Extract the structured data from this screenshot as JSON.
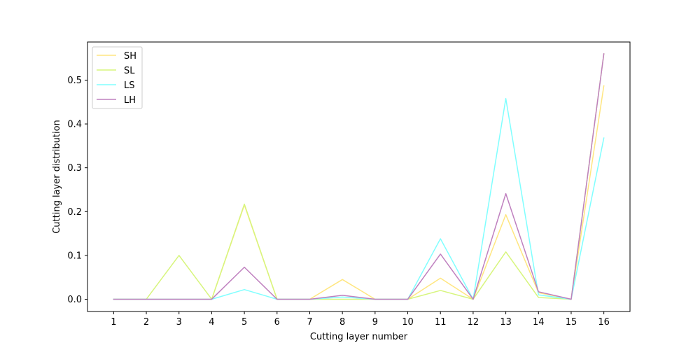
{
  "chart_data": {
    "type": "line",
    "title": "",
    "xlabel": "Cutting layer number",
    "ylabel": "Cutting layer distribution",
    "x": [
      1,
      2,
      3,
      4,
      5,
      6,
      7,
      8,
      9,
      10,
      11,
      12,
      13,
      14,
      15,
      16
    ],
    "xlim": [
      0.2,
      16.8
    ],
    "ylim": [
      -0.028,
      0.587
    ],
    "yticks": [
      0.0,
      0.1,
      0.2,
      0.3,
      0.4,
      0.5
    ],
    "ytick_labels": [
      "0.0",
      "0.1",
      "0.2",
      "0.3",
      "0.4",
      "0.5"
    ],
    "xtick_labels": [
      "1",
      "2",
      "3",
      "4",
      "5",
      "6",
      "7",
      "8",
      "9",
      "10",
      "11",
      "12",
      "13",
      "14",
      "15",
      "16"
    ],
    "grid": false,
    "legend_position": "top-left",
    "series": [
      {
        "name": "SH",
        "color": "#ffe680",
        "values": [
          0.0,
          0.0,
          0.0,
          0.0,
          0.215,
          0.0,
          0.0,
          0.045,
          0.0,
          0.0,
          0.048,
          0.0,
          0.193,
          0.015,
          0.0,
          0.487
        ]
      },
      {
        "name": "SL",
        "color": "#d7f57d",
        "values": [
          0.0,
          0.0,
          0.1,
          0.0,
          0.217,
          0.0,
          0.0,
          0.0,
          0.0,
          0.0,
          0.02,
          0.0,
          0.108,
          0.004,
          0.0,
          0.56
        ]
      },
      {
        "name": "LS",
        "color": "#80ffff",
        "values": [
          0.0,
          0.0,
          0.0,
          0.0,
          0.022,
          0.0,
          0.0,
          0.005,
          0.0,
          0.0,
          0.138,
          0.0,
          0.458,
          0.01,
          0.0,
          0.368
        ]
      },
      {
        "name": "LH",
        "color": "#bf80bf",
        "values": [
          0.0,
          0.0,
          0.0,
          0.0,
          0.073,
          0.0,
          0.0,
          0.009,
          0.0,
          0.0,
          0.103,
          0.0,
          0.241,
          0.017,
          0.0,
          0.56
        ]
      }
    ]
  }
}
